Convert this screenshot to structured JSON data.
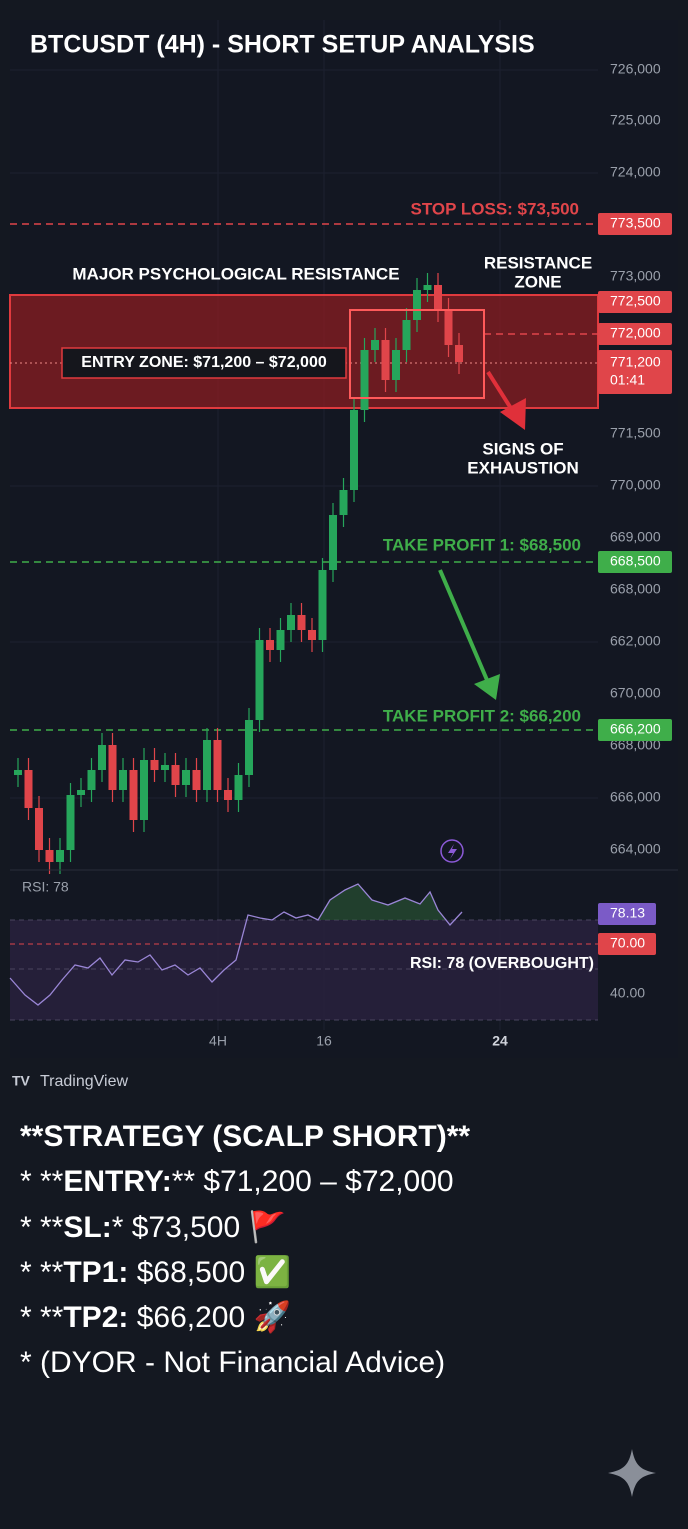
{
  "chart": {
    "title": "BTCUSDT (4H) - SHORT SETUP ANALYSIS",
    "price_labels": [
      "726,000",
      "725,000",
      "724,000",
      "773,000",
      "771,500",
      "770,000",
      "669,000",
      "668,000",
      "662,000",
      "670,000",
      "668,000",
      "666,000",
      "664,000"
    ],
    "level_tags": {
      "stop_loss": "773,500",
      "zone_top": "772,500",
      "zone_mid": "772,000",
      "current": "771,200",
      "countdown": "01:41",
      "tp1": "668,500",
      "tp2": "666,200"
    },
    "annotations": {
      "stop_loss": "STOP LOSS: $73,500",
      "resistance": "MAJOR PSYCHOLOGICAL RESISTANCE",
      "resistance_zone": [
        "RESISTANCE",
        "ZONE"
      ],
      "entry_zone": "ENTRY ZONE: $71,200 – $72,000",
      "exhaustion": [
        "SIGNS OF",
        "EXHAUSTION"
      ],
      "tp1": "TAKE PROFIT 1: $68,500",
      "tp2": "TAKE PROFIT 2: $66,200"
    },
    "rsi": {
      "label": "RSI: 78",
      "value_tag": "78.13",
      "level_tag": "70.00",
      "axis_label": "40.00",
      "note": "RSI: 78 (OVERBOUGHT)"
    },
    "time_labels": [
      "4H",
      "16",
      "24"
    ]
  },
  "brand": "TradingView",
  "strategy": {
    "heading": "**STRATEGY (SCALP SHORT)**",
    "lines": [
      [
        "* **",
        "ENTRY:",
        "** $71,200 – $72,000"
      ],
      [
        "* **",
        "SL:",
        "* $73,500 🚩"
      ],
      [
        "* **",
        "TP1:",
        " $68,500 ✅"
      ],
      [
        "* **",
        "TP2:",
        " $66,200 🚀"
      ],
      [
        "* (DYOR - Not Financial Advice)"
      ]
    ]
  }
}
